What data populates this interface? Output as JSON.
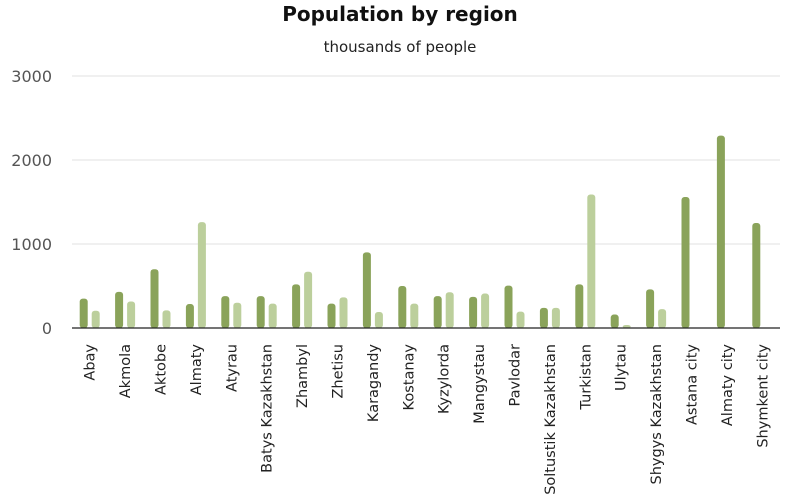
{
  "chart_data": {
    "type": "bar",
    "title": "Population by region",
    "subtitle": "thousands of people",
    "xlabel": "",
    "ylabel": "",
    "ylim": [
      0,
      3000
    ],
    "yticks": [
      "0",
      "1000",
      "2000",
      "3000"
    ],
    "grid": true,
    "legend": "none",
    "categories": [
      "Abay",
      "Akmola",
      "Aktobe",
      "Almaty",
      "Atyrau",
      "Batys Kazakhstan",
      "Zhambyl",
      "Zhetisu",
      "Karagandy",
      "Kostanay",
      "Kyzylorda",
      "Mangystau",
      "Pavlodar",
      "Soltustik Kazakhstan",
      "Turkistan",
      "Ulytau",
      "Shygys Kazakhstan",
      "Astana city",
      "Almaty city",
      "Shymkent city"
    ],
    "series": [
      {
        "color": "#8aa35a",
        "values": [
          350,
          430,
          700,
          285,
          380,
          380,
          520,
          290,
          900,
          500,
          380,
          370,
          505,
          240,
          520,
          160,
          460,
          1560,
          2290,
          1250
        ]
      },
      {
        "color": "#bccf9c",
        "values": [
          205,
          315,
          210,
          1260,
          300,
          290,
          670,
          365,
          190,
          290,
          425,
          410,
          195,
          240,
          1590,
          35,
          225,
          0,
          0,
          0
        ]
      }
    ]
  }
}
